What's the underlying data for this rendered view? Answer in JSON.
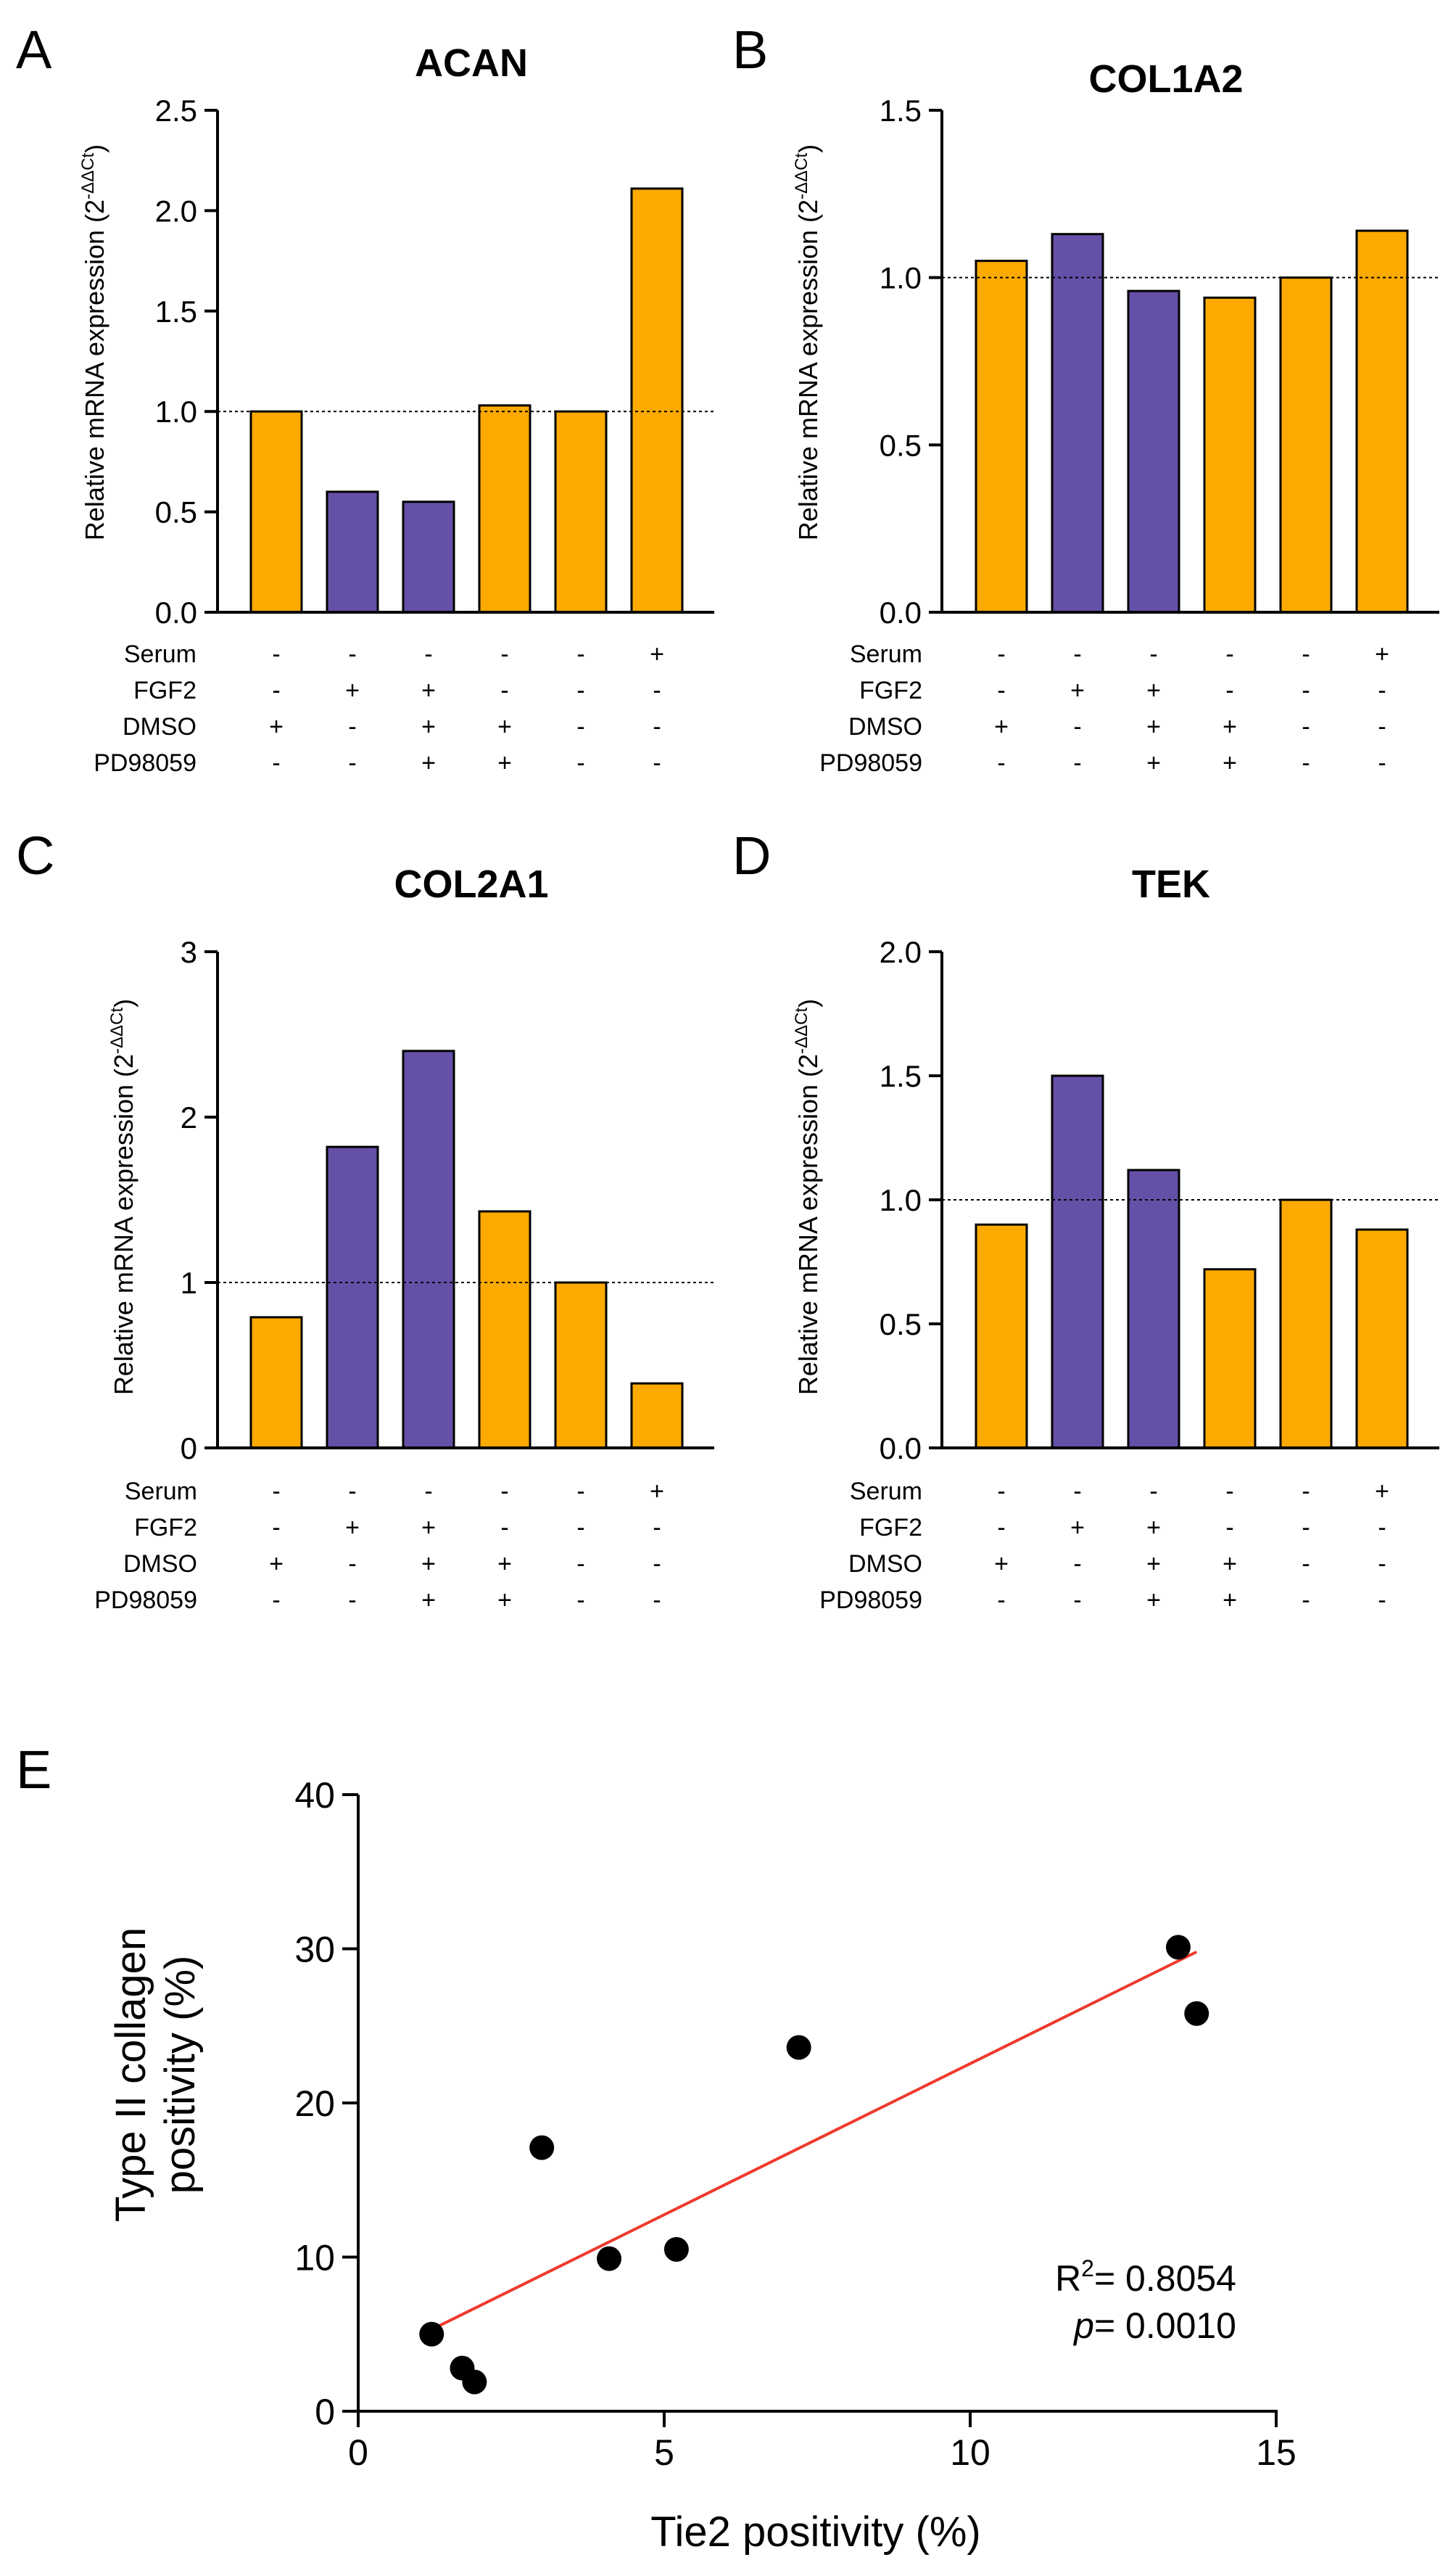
{
  "colors": {
    "orange": "#FDAA00",
    "purple": "#6550A8",
    "fit": "#EE3A2E",
    "point": "#000000"
  },
  "chart_data": [
    {
      "panel": "A",
      "type": "bar",
      "title": "ACAN",
      "ylabel": "Relative mRNA expression (2",
      "ylabel_sup": "-ΔΔCt",
      "ylabel_close": ")",
      "ylim": [
        0,
        2.5
      ],
      "yticks": [
        "0.0",
        "0.5",
        "1.0",
        "1.5",
        "2.0",
        "2.5"
      ],
      "reference_line": 1.0,
      "values": [
        1.0,
        0.6,
        0.55,
        1.03,
        1.0,
        2.11
      ],
      "bar_colors": [
        "orange",
        "purple",
        "purple",
        "orange",
        "orange",
        "orange"
      ],
      "conditions": [
        {
          "label": "Serum",
          "signs": [
            "-",
            "-",
            "-",
            "-",
            "-",
            "+"
          ]
        },
        {
          "label": "FGF2",
          "signs": [
            "-",
            "+",
            "+",
            "-",
            "-",
            "-"
          ]
        },
        {
          "label": "DMSO",
          "signs": [
            "+",
            "-",
            "+",
            "+",
            "-",
            "-"
          ]
        },
        {
          "label": "PD98059",
          "signs": [
            "-",
            "-",
            "+",
            "+",
            "-",
            "-"
          ]
        }
      ]
    },
    {
      "panel": "B",
      "type": "bar",
      "title": "COL1A2",
      "ylabel": "Relative mRNA expression (2",
      "ylabel_sup": "-ΔΔCt",
      "ylabel_close": ")",
      "ylim": [
        0,
        1.5
      ],
      "yticks": [
        "0.0",
        "0.5",
        "1.0",
        "1.5"
      ],
      "reference_line": 1.0,
      "values": [
        1.05,
        1.13,
        0.96,
        0.94,
        1.0,
        1.14
      ],
      "bar_colors": [
        "orange",
        "purple",
        "purple",
        "orange",
        "orange",
        "orange"
      ],
      "conditions": [
        {
          "label": "Serum",
          "signs": [
            "-",
            "-",
            "-",
            "-",
            "-",
            "+"
          ]
        },
        {
          "label": "FGF2",
          "signs": [
            "-",
            "+",
            "+",
            "-",
            "-",
            "-"
          ]
        },
        {
          "label": "DMSO",
          "signs": [
            "+",
            "-",
            "+",
            "+",
            "-",
            "-"
          ]
        },
        {
          "label": "PD98059",
          "signs": [
            "-",
            "-",
            "+",
            "+",
            "-",
            "-"
          ]
        }
      ]
    },
    {
      "panel": "C",
      "type": "bar",
      "title": "COL2A1",
      "ylabel": "Relative mRNA expression (2",
      "ylabel_sup": "-ΔΔCt",
      "ylabel_close": ")",
      "ylim": [
        0,
        3
      ],
      "yticks": [
        "0",
        "1",
        "2",
        "3"
      ],
      "reference_line": 1.0,
      "values": [
        0.79,
        1.82,
        2.4,
        1.43,
        1.0,
        0.39
      ],
      "bar_colors": [
        "orange",
        "purple",
        "purple",
        "orange",
        "orange",
        "orange"
      ],
      "conditions": [
        {
          "label": "Serum",
          "signs": [
            "-",
            "-",
            "-",
            "-",
            "-",
            "+"
          ]
        },
        {
          "label": "FGF2",
          "signs": [
            "-",
            "+",
            "+",
            "-",
            "-",
            "-"
          ]
        },
        {
          "label": "DMSO",
          "signs": [
            "+",
            "-",
            "+",
            "+",
            "-",
            "-"
          ]
        },
        {
          "label": "PD98059",
          "signs": [
            "-",
            "-",
            "+",
            "+",
            "-",
            "-"
          ]
        }
      ]
    },
    {
      "panel": "D",
      "type": "bar",
      "title": "TEK",
      "ylabel": "Relative mRNA expression (2",
      "ylabel_sup": "-ΔΔCt",
      "ylabel_close": ")",
      "ylim": [
        0,
        2.0
      ],
      "yticks": [
        "0.0",
        "0.5",
        "1.0",
        "1.5",
        "2.0"
      ],
      "reference_line": 1.0,
      "values": [
        0.9,
        1.5,
        1.12,
        0.72,
        1.0,
        0.88
      ],
      "bar_colors": [
        "orange",
        "purple",
        "purple",
        "orange",
        "orange",
        "orange"
      ],
      "conditions": [
        {
          "label": "Serum",
          "signs": [
            "-",
            "-",
            "-",
            "-",
            "-",
            "+"
          ]
        },
        {
          "label": "FGF2",
          "signs": [
            "-",
            "+",
            "+",
            "-",
            "-",
            "-"
          ]
        },
        {
          "label": "DMSO",
          "signs": [
            "+",
            "-",
            "+",
            "+",
            "-",
            "-"
          ]
        },
        {
          "label": "PD98059",
          "signs": [
            "-",
            "-",
            "+",
            "+",
            "-",
            "-"
          ]
        }
      ]
    },
    {
      "panel": "E",
      "type": "scatter",
      "title": "",
      "xlabel": "Tie2 positivity (%)",
      "ylabel_line1": "Type II collagen",
      "ylabel_line2": "positivity (%)",
      "xlim": [
        0,
        15
      ],
      "ylim": [
        0,
        40
      ],
      "xticks": [
        "0",
        "5",
        "10",
        "15"
      ],
      "yticks": [
        "0",
        "10",
        "20",
        "30",
        "40"
      ],
      "points": [
        {
          "x": 1.2,
          "y": 5.0
        },
        {
          "x": 1.7,
          "y": 2.8
        },
        {
          "x": 1.9,
          "y": 1.9
        },
        {
          "x": 3.0,
          "y": 17.1
        },
        {
          "x": 4.1,
          "y": 9.9
        },
        {
          "x": 5.2,
          "y": 10.5
        },
        {
          "x": 7.2,
          "y": 23.6
        },
        {
          "x": 13.4,
          "y": 30.1
        },
        {
          "x": 13.7,
          "y": 25.8
        }
      ],
      "fit_line": {
        "x": [
          1.2,
          13.7
        ],
        "y": [
          5.3,
          29.8
        ]
      },
      "stats": {
        "r2_label": "R",
        "r2_sup": "2",
        "r2_value": "= 0.8054",
        "p_label": "p",
        "p_value": "= 0.0010"
      }
    }
  ]
}
